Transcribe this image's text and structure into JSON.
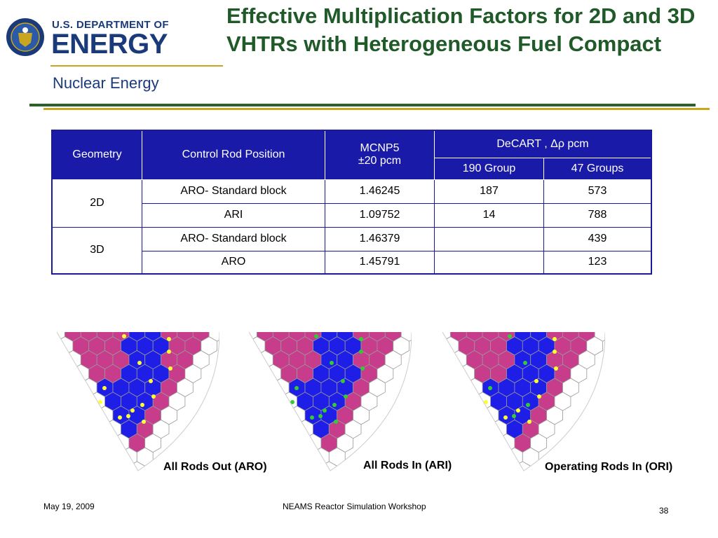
{
  "logo": {
    "line1": "U.S. DEPARTMENT OF",
    "line2": "ENERGY",
    "line3": "Nuclear Energy"
  },
  "title": "Effective Multiplication Factors for 2D and 3D VHTRs with Heterogeneous Fuel Compact",
  "table": {
    "headers": {
      "geometry": "Geometry",
      "control_rod_position": "Control Rod Position",
      "mcnp5_line1": "MCNP5",
      "mcnp5_line2": "±20 pcm",
      "decart": "DeCART , Δρ pcm",
      "group190": "190 Group",
      "group47": "47 Groups"
    },
    "groups": [
      {
        "geometry": "2D",
        "rows": [
          {
            "position": "ARO- Standard block",
            "mcnp5": "1.46245",
            "g190": "187",
            "g47": "573"
          },
          {
            "position": "ARI",
            "mcnp5": "1.09752",
            "g190": "14",
            "g47": "788"
          }
        ]
      },
      {
        "geometry": "3D",
        "rows": [
          {
            "position": "ARO- Standard block",
            "mcnp5": "1.46379",
            "g190": "",
            "g47": "439"
          },
          {
            "position": "ARO",
            "mcnp5": "1.45791",
            "g190": "",
            "g47": "123"
          }
        ]
      }
    ]
  },
  "captions": {
    "aro": "All Rods Out (ARO)",
    "ari": "All Rods In (ARI)",
    "ori": "Operating Rods In (ORI)"
  },
  "footer": {
    "date": "May 19, 2009",
    "event": "NEAMS Reactor Simulation Workshop",
    "page": "38"
  },
  "colors": {
    "fuel": "#c83c8c",
    "reflector": "#1e1ee6",
    "outer": "#ffffff",
    "rod_out": "#ffff33",
    "rod_in": "#33cc33",
    "title": "#1f5a28",
    "table_header": "#1a1aa8"
  }
}
